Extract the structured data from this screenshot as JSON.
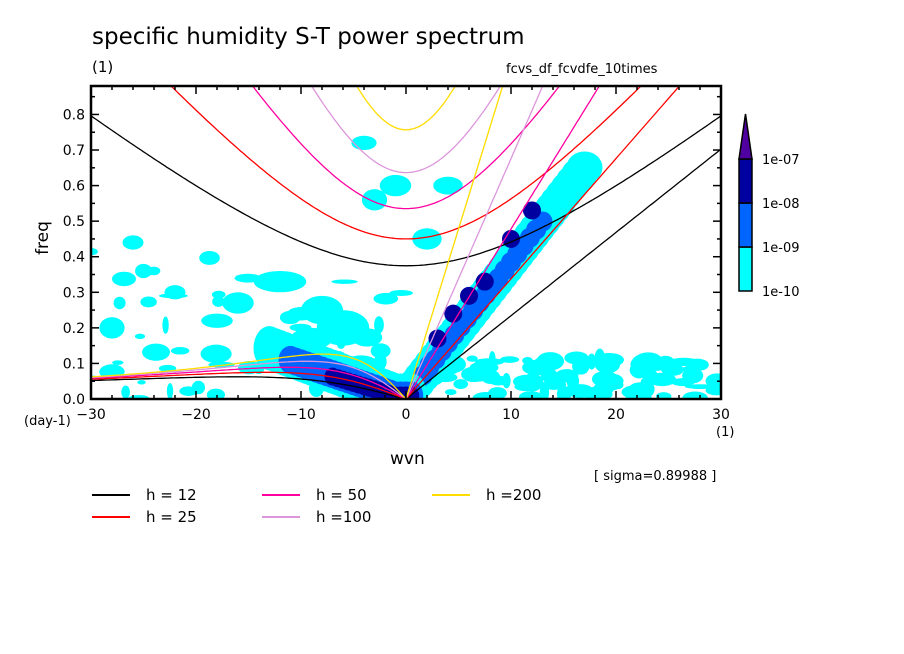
{
  "chart_data": {
    "type": "heatmap",
    "title": "specific humidity S-T power spectrum",
    "subtitle_left": "(1)",
    "subtitle_right": "fcvs_df_fcvdfe_10times",
    "xlabel": "wvn",
    "ylabel": "freq",
    "x_unit": "(1)",
    "y_unit": "(day-1)",
    "xlim": [
      -30,
      30
    ],
    "ylim": [
      0,
      0.88
    ],
    "x_ticks": [
      -30,
      -20,
      -10,
      0,
      10,
      20,
      30
    ],
    "x_tick_labels": [
      "−30",
      "−20",
      "−10",
      "0",
      "10",
      "20",
      "30"
    ],
    "y_ticks": [
      0.0,
      0.1,
      0.2,
      0.3,
      0.4,
      0.5,
      0.6,
      0.7,
      0.8
    ],
    "y_tick_labels": [
      "0.0",
      "0.1",
      "0.2",
      "0.3",
      "0.4",
      "0.5",
      "0.6",
      "0.7",
      "0.8"
    ],
    "annotation": "[ sigma=0.89988 ]",
    "colorbar": {
      "levels": [
        "1e-10",
        "1e-09",
        "1e-08",
        "1e-07"
      ],
      "colors": [
        "#00ffff",
        "#0064ff",
        "#0000a0",
        "#5000a0"
      ],
      "extend": "max"
    },
    "contour_fill_description": "Log power; highest power along Kelvin-wave ridge (wvn 1-14, freq 0.03-0.5) and westward low-frequency band (wvn -12-0, freq 0-0.15)",
    "ridge_points": [
      {
        "wvn": 2,
        "freq": 0.1,
        "level": "1e-08"
      },
      {
        "wvn": 3,
        "freq": 0.17,
        "level": "1e-07"
      },
      {
        "wvn": 4.5,
        "freq": 0.24,
        "level": "1e-07"
      },
      {
        "wvn": 6,
        "freq": 0.29,
        "level": "1e-07"
      },
      {
        "wvn": 7.5,
        "freq": 0.33,
        "level": "1e-07"
      },
      {
        "wvn": 10,
        "freq": 0.45,
        "level": "1e-07"
      },
      {
        "wvn": 12,
        "freq": 0.53,
        "level": "1e-07"
      },
      {
        "wvn": -9,
        "freq": 0.12,
        "level": "1e-08"
      },
      {
        "wvn": -4,
        "freq": 0.08,
        "level": "1e-07"
      }
    ],
    "dispersion_curves": {
      "equivalent_depths_m": [
        12,
        25,
        50,
        100,
        200
      ],
      "wave_types": [
        "kelvin",
        "equatorial-rossby n=1",
        "inertio-gravity n=1"
      ]
    },
    "legend": [
      {
        "label": "h = 12",
        "color": "#000000"
      },
      {
        "label": "h = 25",
        "color": "#ff0000"
      },
      {
        "label": "h = 50",
        "color": "#ff00a0"
      },
      {
        "label": "h =100",
        "color": "#dc96dc"
      },
      {
        "label": "h =200",
        "color": "#ffdc00"
      }
    ]
  }
}
